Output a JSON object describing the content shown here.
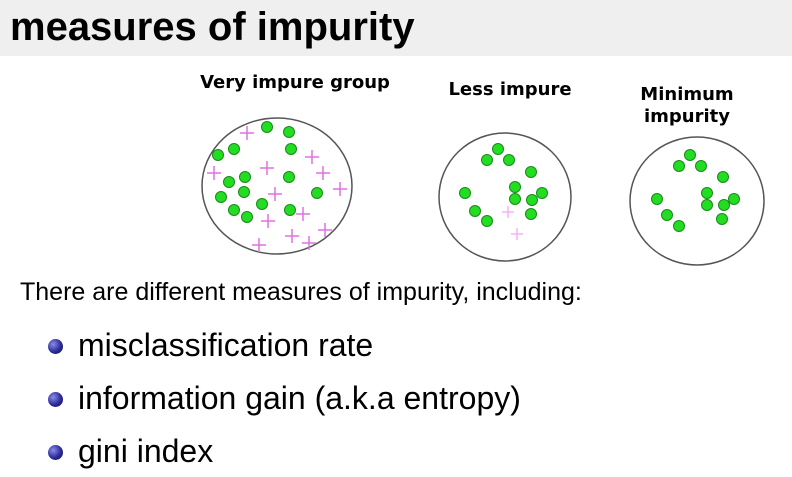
{
  "title": "measures of impurity",
  "groups": [
    {
      "label": "Very impure group"
    },
    {
      "label": "Less impure"
    },
    {
      "label": "Minimum\nimpurity"
    }
  ],
  "colors": {
    "positive_marker": "#22dd22",
    "negative_marker": "#e070e0",
    "bullet": "#1f1f8a",
    "title_bar": "#efefef"
  },
  "intro_text": "There are different measures of impurity, including:",
  "measures": [
    "misclassification rate",
    "information gain (a.k.a entropy)",
    "gini index"
  ]
}
